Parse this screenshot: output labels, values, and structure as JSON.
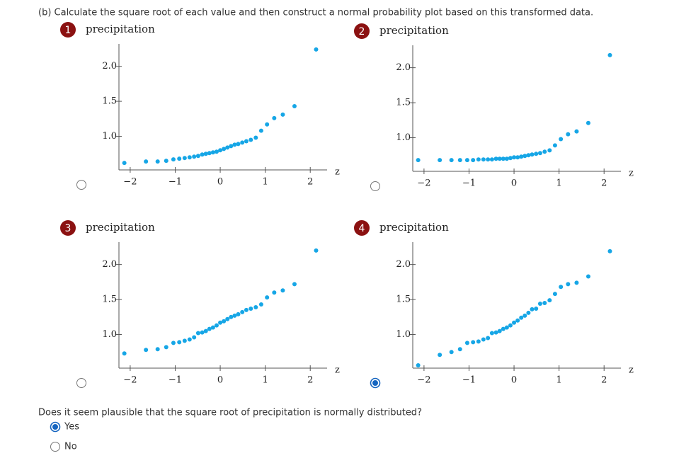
{
  "instruction": "(b) Calculate the square root of each value and then construct a normal probability plot based on this transformed data.",
  "options": [
    {
      "number": "1",
      "selected": false,
      "plot": {
        "type": "scatter",
        "y_label": "precipitation",
        "x_label": "z",
        "color": "#16a6e6",
        "x": [
          -2.13,
          -1.65,
          -1.39,
          -1.2,
          -1.04,
          -0.91,
          -0.79,
          -0.68,
          -0.58,
          -0.49,
          -0.4,
          -0.32,
          -0.24,
          -0.16,
          -0.08,
          0,
          0.08,
          0.16,
          0.24,
          0.32,
          0.4,
          0.49,
          0.58,
          0.68,
          0.79,
          0.91,
          1.04,
          1.2,
          1.39,
          1.65,
          2.13
        ],
        "y": [
          0.62,
          0.64,
          0.64,
          0.65,
          0.67,
          0.68,
          0.69,
          0.7,
          0.71,
          0.72,
          0.74,
          0.75,
          0.76,
          0.77,
          0.78,
          0.8,
          0.82,
          0.84,
          0.86,
          0.88,
          0.89,
          0.91,
          0.93,
          0.95,
          0.98,
          1.08,
          1.17,
          1.26,
          1.31,
          1.43,
          2.24
        ],
        "xlim": [
          -2.25,
          2.5
        ],
        "ylim": [
          0.52,
          2.32
        ],
        "xticks": [
          {
            "value": -2,
            "label": "−2"
          },
          {
            "value": -1,
            "label": "−1"
          },
          0,
          1,
          2
        ],
        "yticks": [
          {
            "value": 1,
            "label": "1.0"
          },
          {
            "value": 1.5,
            "label": "1.5"
          },
          {
            "value": 2,
            "label": "2.0"
          }
        ]
      }
    },
    {
      "number": "2",
      "selected": false,
      "plot": {
        "type": "scatter",
        "y_label": "precipitation",
        "x_label": "z",
        "color": "#16a6e6",
        "x": [
          -2.13,
          -1.65,
          -1.39,
          -1.2,
          -1.04,
          -0.91,
          -0.79,
          -0.68,
          -0.58,
          -0.49,
          -0.4,
          -0.32,
          -0.24,
          -0.16,
          -0.08,
          0,
          0.08,
          0.16,
          0.24,
          0.32,
          0.4,
          0.49,
          0.58,
          0.68,
          0.79,
          0.91,
          1.04,
          1.2,
          1.39,
          1.65,
          2.13
        ],
        "y": [
          0.68,
          0.68,
          0.68,
          0.68,
          0.68,
          0.68,
          0.69,
          0.69,
          0.69,
          0.69,
          0.7,
          0.7,
          0.7,
          0.7,
          0.71,
          0.72,
          0.72,
          0.73,
          0.74,
          0.75,
          0.76,
          0.77,
          0.78,
          0.8,
          0.82,
          0.89,
          0.98,
          1.05,
          1.09,
          1.21,
          2.18
        ],
        "xlim": [
          -2.25,
          2.5
        ],
        "ylim": [
          0.52,
          2.32
        ],
        "xticks": [
          {
            "value": -2,
            "label": "−2"
          },
          {
            "value": -1,
            "label": "−1"
          },
          0,
          1,
          2
        ],
        "yticks": [
          {
            "value": 1,
            "label": "1.0"
          },
          {
            "value": 1.5,
            "label": "1.5"
          },
          {
            "value": 2,
            "label": "2.0"
          }
        ]
      }
    },
    {
      "number": "3",
      "selected": false,
      "plot": {
        "type": "scatter",
        "y_label": "precipitation",
        "x_label": "z",
        "color": "#16a6e6",
        "x": [
          -2.13,
          -1.65,
          -1.39,
          -1.2,
          -1.04,
          -0.91,
          -0.79,
          -0.68,
          -0.58,
          -0.49,
          -0.4,
          -0.32,
          -0.24,
          -0.16,
          -0.08,
          0,
          0.08,
          0.16,
          0.24,
          0.32,
          0.4,
          0.49,
          0.58,
          0.68,
          0.79,
          0.91,
          1.04,
          1.2,
          1.39,
          1.65,
          2.13
        ],
        "y": [
          0.73,
          0.78,
          0.79,
          0.82,
          0.88,
          0.89,
          0.91,
          0.93,
          0.96,
          1.02,
          1.03,
          1.05,
          1.08,
          1.1,
          1.13,
          1.17,
          1.19,
          1.22,
          1.25,
          1.27,
          1.29,
          1.32,
          1.35,
          1.37,
          1.39,
          1.43,
          1.53,
          1.6,
          1.63,
          1.72,
          2.2
        ],
        "xlim": [
          -2.25,
          2.5
        ],
        "ylim": [
          0.52,
          2.32
        ],
        "xticks": [
          {
            "value": -2,
            "label": "−2"
          },
          {
            "value": -1,
            "label": "−1"
          },
          0,
          1,
          2
        ],
        "yticks": [
          {
            "value": 1,
            "label": "1.0"
          },
          {
            "value": 1.5,
            "label": "1.5"
          },
          {
            "value": 2,
            "label": "2.0"
          }
        ]
      }
    },
    {
      "number": "4",
      "selected": true,
      "plot": {
        "type": "scatter",
        "y_label": "precipitation",
        "x_label": "z",
        "color": "#16a6e6",
        "x": [
          -2.13,
          -1.65,
          -1.39,
          -1.2,
          -1.04,
          -0.91,
          -0.79,
          -0.68,
          -0.58,
          -0.49,
          -0.4,
          -0.32,
          -0.24,
          -0.16,
          -0.08,
          0,
          0.08,
          0.16,
          0.24,
          0.32,
          0.4,
          0.49,
          0.58,
          0.68,
          0.79,
          0.91,
          1.04,
          1.2,
          1.39,
          1.65,
          2.13
        ],
        "y": [
          0.56,
          0.71,
          0.75,
          0.79,
          0.88,
          0.89,
          0.9,
          0.93,
          0.95,
          1.02,
          1.03,
          1.05,
          1.08,
          1.1,
          1.13,
          1.17,
          1.2,
          1.24,
          1.27,
          1.31,
          1.36,
          1.37,
          1.44,
          1.45,
          1.49,
          1.58,
          1.68,
          1.72,
          1.74,
          1.83,
          2.19
        ],
        "xlim": [
          -2.25,
          2.5
        ],
        "ylim": [
          0.52,
          2.32
        ],
        "xticks": [
          {
            "value": -2,
            "label": "−2"
          },
          {
            "value": -1,
            "label": "−1"
          },
          0,
          1,
          2
        ],
        "yticks": [
          {
            "value": 1,
            "label": "1.0"
          },
          {
            "value": 1.5,
            "label": "1.5"
          },
          {
            "value": 2,
            "label": "2.0"
          }
        ]
      }
    }
  ],
  "question": "Does it seem plausible that the square root of precipitation is normally distributed?",
  "answers": [
    {
      "label": "Yes",
      "selected": true
    },
    {
      "label": "No",
      "selected": false
    }
  ]
}
